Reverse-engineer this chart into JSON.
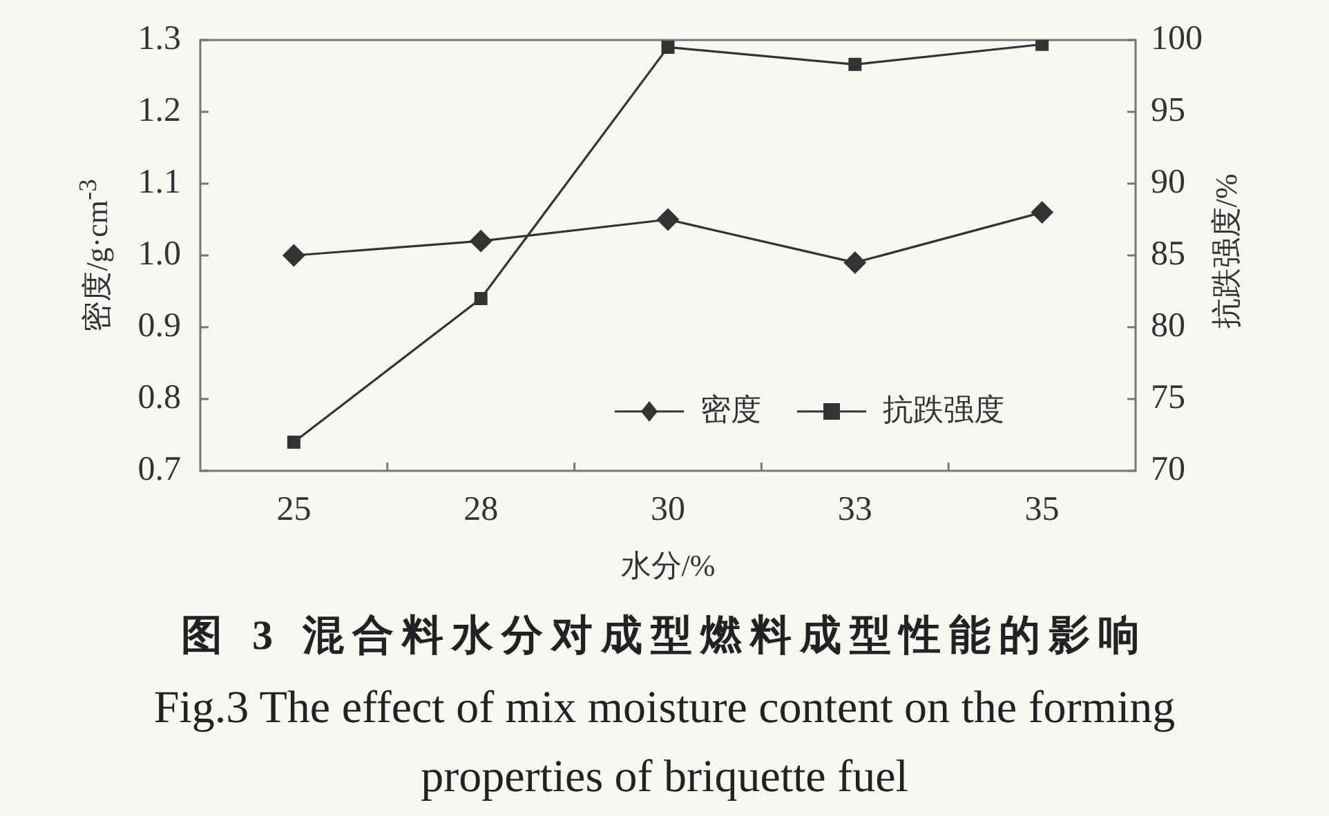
{
  "chart_data": {
    "type": "line",
    "title": "图 3 混合料水分对成型燃料成型性能的影响",
    "subtitle": "Fig.3 The effect of mix moisture content on the forming properties of briquette fuel",
    "xlabel": "水分/%",
    "ylabel": "密度/g·cm$^{-3}$",
    "y2label": "抗跌强度/%",
    "categories": [
      "25",
      "28",
      "30",
      "33",
      "35"
    ],
    "ylim": [
      0.7,
      1.3
    ],
    "yticks": [
      0.7,
      0.8,
      0.9,
      {
        "value": 1,
        "label": "1.0"
      },
      1.1,
      1.2,
      1.3
    ],
    "y2lim": [
      70,
      100
    ],
    "y2ticks": [
      70,
      75,
      80,
      85,
      90,
      95,
      100
    ],
    "series": [
      {
        "name": "密度",
        "color": "#333333",
        "marker": "diamond",
        "values": [
          1.0,
          1.02,
          1.05,
          0.99,
          1.06
        ]
      },
      {
        "name": "抗跌强度",
        "color": "#333333",
        "marker": "square",
        "axis": "y2",
        "values": [
          72,
          82,
          99.5,
          98.3,
          99.7
        ]
      }
    ],
    "grid": false,
    "legend": "bottom right",
    "line_style": "solid"
  }
}
